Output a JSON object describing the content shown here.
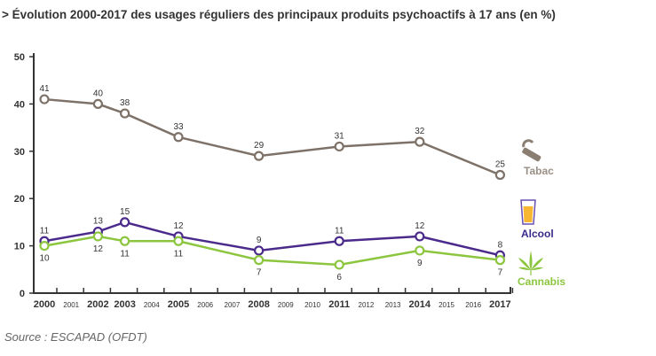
{
  "title": "> Évolution 2000-2017 des usages réguliers des principaux produits psychoactifs à 17 ans (en %)",
  "source": "Source : ESCAPAD (OFDT)",
  "chart_data": {
    "type": "line",
    "x": [
      2000,
      2002,
      2003,
      2005,
      2008,
      2011,
      2014,
      2017
    ],
    "x_ticks": [
      2000,
      2001,
      2002,
      2003,
      2004,
      2005,
      2006,
      2007,
      2008,
      2009,
      2010,
      2011,
      2012,
      2013,
      2014,
      2015,
      2016,
      2017
    ],
    "x_major": [
      2000,
      2002,
      2003,
      2005,
      2008,
      2011,
      2014,
      2017
    ],
    "y_ticks": [
      0,
      10,
      20,
      30,
      40,
      50
    ],
    "ylim": [
      0,
      50
    ],
    "series": [
      {
        "name": "Tabac",
        "color": "#7d7168",
        "icon": "cigarette-icon",
        "values": [
          41,
          40,
          38,
          33,
          29,
          31,
          32,
          25
        ],
        "label_pos": "above"
      },
      {
        "name": "Alcool",
        "color": "#4b2a8c",
        "icon": "beer-glass-icon",
        "values": [
          11,
          13,
          15,
          12,
          9,
          11,
          12,
          8
        ],
        "label_pos": "above"
      },
      {
        "name": "Cannabis",
        "color": "#8cc63f",
        "icon": "cannabis-leaf-icon",
        "values": [
          10,
          12,
          11,
          11,
          7,
          6,
          9,
          7
        ],
        "label_pos": "below"
      }
    ]
  }
}
